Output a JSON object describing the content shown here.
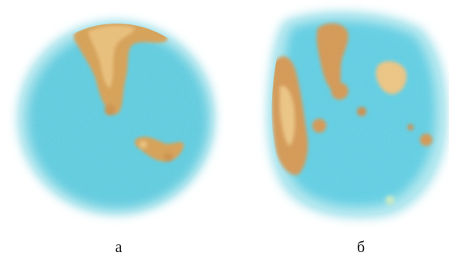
{
  "panels": [
    {
      "label": "а",
      "colors": {
        "background": "#56c8dc",
        "hot": "#d29a4c",
        "hot_light": "#e6b970",
        "rim": "#9fe0ea"
      }
    },
    {
      "label": "б",
      "colors": {
        "background": "#59cae0",
        "hot": "#d0914a",
        "hot_light": "#e8c07a",
        "rim": "#a6e3ec"
      }
    }
  ]
}
